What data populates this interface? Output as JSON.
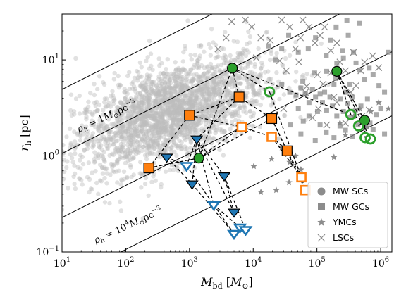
{
  "chart_data": {
    "type": "scatter",
    "x_scale": "log",
    "y_scale": "log",
    "xlim": [
      10,
      1500000
    ],
    "ylim": [
      0.1,
      30
    ],
    "xlabel": {
      "var": "M",
      "sub": "bd",
      "unit": "M",
      "unit_sub": "⊙"
    },
    "ylabel": {
      "var": "r",
      "sub": "h",
      "unit": "pc"
    },
    "x_ticks": [
      {
        "value": 10,
        "base": "10",
        "exp": "1"
      },
      {
        "value": 100,
        "base": "10",
        "exp": "2"
      },
      {
        "value": 1000,
        "base": "10",
        "exp": "3"
      },
      {
        "value": 10000,
        "base": "10",
        "exp": "4"
      },
      {
        "value": 100000,
        "base": "10",
        "exp": "5"
      },
      {
        "value": 1000000,
        "base": "10",
        "exp": "6"
      }
    ],
    "y_ticks": [
      {
        "value": 0.1,
        "base": "10",
        "exp": "−1"
      },
      {
        "value": 1,
        "base": "10",
        "exp": "0"
      },
      {
        "value": 10,
        "base": "10",
        "exp": "1"
      }
    ],
    "density_lines": [
      {
        "rho": 0.01
      },
      {
        "rho": 1,
        "label": {
          "pre": "ρ",
          "sub": "h",
          "mid": " = 1",
          "unit": "M",
          "unit_sub": "⊙",
          "tail": "pc",
          "exp": "−3"
        }
      },
      {
        "rho": 100
      },
      {
        "rho": 10000,
        "label": {
          "pre": "ρ",
          "sub": "h",
          "mid": " = 10",
          "mid_exp": "4",
          "unit": "M",
          "unit_sub": "⊙",
          "tail": "pc",
          "exp": "−3"
        }
      }
    ],
    "colors": {
      "background_points": "#bdbdbd",
      "mw_sc": "#2ca02c",
      "mw_sc_edge": "#000000",
      "gc_marker": "#ff7f0e",
      "triangle_marker": "#1f77b4",
      "mw_gc": "#8c8c8c",
      "ymc": "#8c8c8c",
      "lsc": "#8c8c8c"
    },
    "legend": {
      "position": "lower-right",
      "entries": [
        {
          "label": "MW SCs",
          "marker": "circle"
        },
        {
          "label": "MW GCs",
          "marker": "square"
        },
        {
          "label": "YMCs",
          "marker": "star"
        },
        {
          "label": "LSCs",
          "marker": "x"
        }
      ]
    },
    "background_cloud": {
      "count": 2400,
      "center_logM": 2.7,
      "center_logR": 0.45,
      "sigma_logM": 0.75,
      "sigma_logR": 0.3,
      "corr": 0.55
    },
    "mw_gcs_points": [
      [
        295000.0,
        26
      ],
      [
        460000.0,
        24
      ],
      [
        310000.0,
        18
      ],
      [
        200000.0,
        22
      ],
      [
        165000.0,
        16
      ],
      [
        95000.0,
        17
      ],
      [
        73000.0,
        13
      ],
      [
        51000.0,
        12
      ],
      [
        36000.0,
        18
      ],
      [
        28000.0,
        13
      ],
      [
        17500.0,
        14
      ],
      [
        22500.0,
        10
      ],
      [
        140000.0,
        11
      ],
      [
        205000.0,
        9.2
      ],
      [
        260000.0,
        10.5
      ],
      [
        375000.0,
        12
      ],
      [
        460000.0,
        7.8
      ],
      [
        560000.0,
        6.2
      ],
      [
        660000.0,
        8.2
      ],
      [
        760000.0,
        7.0
      ],
      [
        940000.0,
        5.4
      ],
      [
        1150000.0,
        4.6
      ],
      [
        1320000.0,
        12
      ],
      [
        28000.0,
        5.6
      ],
      [
        37500.0,
        4.6
      ],
      [
        47000.0,
        4.3
      ],
      [
        56000.0,
        5.1
      ],
      [
        66000.0,
        4.4
      ],
      [
        75000.0,
        3.6
      ],
      [
        85000.0,
        4.9
      ],
      [
        95000.0,
        4.1
      ],
      [
        102000.0,
        2.9
      ],
      [
        112000.0,
        4.4
      ],
      [
        122000.0,
        3.6
      ],
      [
        132000.0,
        4.6
      ],
      [
        142000.0,
        3.0
      ],
      [
        160000.0,
        4.1
      ],
      [
        175000.0,
        3.3
      ],
      [
        185000.0,
        5.6
      ],
      [
        205000.0,
        2.6
      ],
      [
        235000.0,
        3.9
      ],
      [
        260000.0,
        2.9
      ],
      [
        280000.0,
        4.6
      ],
      [
        300000.0,
        3.5
      ],
      [
        330000.0,
        2.5
      ],
      [
        360000.0,
        4.1
      ],
      [
        400000.0,
        3.0
      ],
      [
        440000.0,
        2.1
      ],
      [
        490000.0,
        3.3
      ],
      [
        560000.0,
        2.5
      ],
      [
        620000.0,
        3.9
      ],
      [
        680000.0,
        2.2
      ],
      [
        760000.0,
        1.9
      ],
      [
        850000.0,
        2.7
      ],
      [
        1000000.0,
        3.1
      ],
      [
        1150000.0,
        1.7
      ],
      [
        38000.0,
        2.1
      ],
      [
        56000.0,
        1.7
      ],
      [
        75000.0,
        2.6
      ],
      [
        94000.0,
        1.45
      ],
      [
        112000.0,
        2.1
      ],
      [
        140000.0,
        1.75
      ],
      [
        185000.0,
        1.55
      ],
      [
        230000.0,
        2.05
      ],
      [
        280000.0,
        1.85
      ],
      [
        360000.0,
        1.6
      ],
      [
        51000.0,
        3.1
      ],
      [
        61000.0,
        2.3
      ],
      [
        195000.0,
        6.4
      ],
      [
        330000.0,
        5.6
      ],
      [
        142000.0,
        7.6
      ],
      [
        92000.0,
        7.3
      ],
      [
        60000.0,
        6.0
      ],
      [
        250000.0,
        12.5
      ],
      [
        410000.0,
        9.3
      ]
    ],
    "ymc_points": [
      [
        10200.0,
        0.78
      ],
      [
        13200.0,
        0.42
      ],
      [
        19500.0,
        0.93
      ],
      [
        23000.0,
        0.44
      ],
      [
        28000.0,
        1.22
      ],
      [
        36500.0,
        0.53
      ],
      [
        46000.0,
        1.0
      ],
      [
        56000.0,
        0.72
      ],
      [
        185000.0,
        0.97
      ],
      [
        280000.0,
        1.65
      ],
      [
        380000.0,
        2.6
      ],
      [
        470000.0,
        3.1
      ],
      [
        560000.0,
        2.3
      ],
      [
        700000.0,
        2.9
      ],
      [
        930000.0,
        3.6
      ],
      [
        1320000.0,
        3.1
      ],
      [
        230000.0,
        2.2
      ],
      [
        610000.0,
        2.0
      ],
      [
        37500.0,
        0.86
      ]
    ],
    "lsc_points": [
      [
        3750.0,
        17
      ],
      [
        4600.0,
        25
      ],
      [
        7500.0,
        26
      ],
      [
        9500.0,
        22
      ],
      [
        13200.0,
        17
      ],
      [
        18500.0,
        16
      ],
      [
        28000.0,
        26
      ],
      [
        37500.0,
        22
      ],
      [
        55000.0,
        17
      ],
      [
        60000.0,
        26
      ],
      [
        75000.0,
        22
      ],
      [
        93000.0,
        15
      ],
      [
        112000.0,
        18
      ],
      [
        132000.0,
        22
      ],
      [
        165000.0,
        12.5
      ],
      [
        205000.0,
        15
      ],
      [
        280000.0,
        7.7
      ],
      [
        375000.0,
        12
      ],
      [
        560000.0,
        9.5
      ],
      [
        750000.0,
        11
      ],
      [
        930000.0,
        8.3
      ],
      [
        2800.0,
        13
      ],
      [
        11200.0,
        10.5
      ],
      [
        26000.0,
        9.8
      ],
      [
        46000.0,
        13
      ],
      [
        66000.0,
        4.6
      ],
      [
        30000.0,
        3.1
      ],
      [
        105000.0,
        3.1
      ],
      [
        142000.0,
        2.1
      ],
      [
        165000.0,
        7.3
      ],
      [
        230000.0,
        9.5
      ],
      [
        340000.0,
        4.6
      ],
      [
        410000.0,
        5.4
      ],
      [
        510000.0,
        2.6
      ],
      [
        660000.0,
        3.0
      ],
      [
        280000.0,
        2.2
      ],
      [
        185000.0,
        4.1
      ],
      [
        102000.0,
        7.0
      ],
      [
        33000.0,
        7.7
      ],
      [
        85000.0,
        2.5
      ],
      [
        205000.0,
        3.6
      ],
      [
        490000.0,
        7.7
      ],
      [
        125000.0,
        5.6
      ],
      [
        69000.0,
        5.3
      ],
      [
        52000.0,
        9.5
      ]
    ],
    "mw_sc_open": [
      [
        18000.0,
        4.65
      ],
      [
        340000.0,
        2.7
      ],
      [
        450000.0,
        2.05
      ],
      [
        570000.0,
        1.55
      ],
      [
        690000.0,
        1.5
      ]
    ],
    "tracks": [
      {
        "marker": "mw_sc",
        "points": [
          [
            1400.0,
            0.95
          ],
          [
            4700.0,
            8.2
          ],
          [
            560000.0,
            2.35
          ],
          [
            205000.0,
            7.6
          ]
        ]
      },
      {
        "marker": "gc_filled",
        "points": [
          [
            230,
            0.75
          ],
          [
            1000.0,
            2.65
          ],
          [
            6000.0,
            4.1
          ],
          [
            19500.0,
            2.45
          ],
          [
            34000.0,
            1.13
          ]
        ]
      },
      {
        "marker": "gc_open",
        "points": [
          [
            6600.0,
            2.0
          ],
          [
            19500.0,
            1.58
          ],
          [
            57000.0,
            0.6
          ],
          [
            66000.0,
            0.44
          ]
        ]
      },
      {
        "marker": "tri_filled",
        "points": [
          [
            440,
            0.97
          ],
          [
            1100.0,
            0.51
          ],
          [
            1300.0,
            1.5
          ],
          [
            3500.0,
            0.62
          ],
          [
            5000.0,
            0.26
          ]
        ]
      },
      {
        "marker": "tri_open",
        "points": [
          [
            900,
            0.79
          ],
          [
            2400.0,
            0.31
          ],
          [
            5000.0,
            0.155
          ],
          [
            6200.0,
            0.18
          ],
          [
            7600.0,
            0.17
          ]
        ]
      }
    ],
    "connections": [
      [
        [
          4700.0,
          8.2
        ],
        [
          6000.0,
          4.1
        ]
      ],
      [
        [
          4700.0,
          8.2
        ],
        [
          18000.0,
          4.65
        ]
      ],
      [
        [
          18000.0,
          4.65
        ],
        [
          57000.0,
          0.6
        ]
      ],
      [
        [
          6000.0,
          4.1
        ],
        [
          1300.0,
          1.5
        ]
      ],
      [
        [
          1000.0,
          2.65
        ],
        [
          6600.0,
          2.0
        ]
      ],
      [
        [
          6600.0,
          2.0
        ],
        [
          1400.0,
          0.95
        ]
      ],
      [
        [
          1400.0,
          0.95
        ],
        [
          230,
          0.75
        ]
      ],
      [
        [
          1400.0,
          0.95
        ],
        [
          19500.0,
          2.45
        ]
      ],
      [
        [
          19500.0,
          2.45
        ],
        [
          66000.0,
          0.44
        ]
      ],
      [
        [
          19500.0,
          1.58
        ],
        [
          34000.0,
          1.13
        ]
      ],
      [
        [
          34000.0,
          1.13
        ],
        [
          57000.0,
          0.6
        ]
      ],
      [
        [
          205000.0,
          7.6
        ],
        [
          340000.0,
          2.7
        ]
      ],
      [
        [
          560000.0,
          2.35
        ],
        [
          450000.0,
          2.05
        ]
      ],
      [
        [
          205000.0,
          7.6
        ],
        [
          690000.0,
          1.5
        ]
      ],
      [
        [
          560000.0,
          2.35
        ],
        [
          570000.0,
          1.55
        ]
      ],
      [
        [
          1100.0,
          0.51
        ],
        [
          5000.0,
          0.155
        ]
      ],
      [
        [
          3500.0,
          0.62
        ],
        [
          7600.0,
          0.17
        ]
      ],
      [
        [
          2400.0,
          0.31
        ],
        [
          6200.0,
          0.18
        ]
      ],
      [
        [
          1300.0,
          1.5
        ],
        [
          900,
          0.79
        ]
      ],
      [
        [
          1300.0,
          1.5
        ],
        [
          2400.0,
          0.31
        ]
      ],
      [
        [
          1300.0,
          1.5
        ],
        [
          5000.0,
          0.26
        ]
      ],
      [
        [
          440,
          0.97
        ],
        [
          900,
          0.79
        ]
      ]
    ]
  }
}
